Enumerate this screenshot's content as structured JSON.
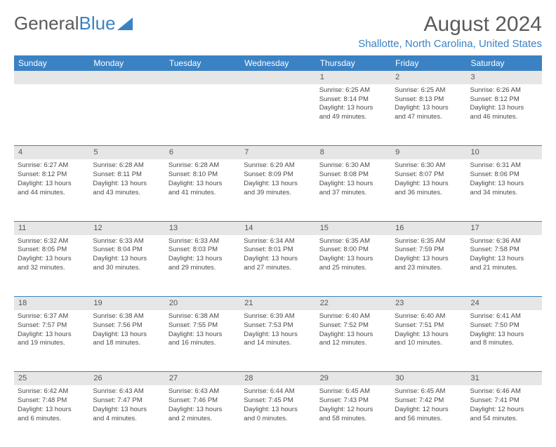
{
  "logo": {
    "text1": "General",
    "text2": "Blue"
  },
  "header": {
    "month_title": "August 2024",
    "location": "Shallotte, North Carolina, United States"
  },
  "colors": {
    "accent": "#3b82c4",
    "header_text": "#ffffff",
    "daynum_bg": "#e6e6e6",
    "body_text": "#4a4a4a",
    "title_text": "#5a5a5a"
  },
  "day_headers": [
    "Sunday",
    "Monday",
    "Tuesday",
    "Wednesday",
    "Thursday",
    "Friday",
    "Saturday"
  ],
  "weeks": [
    {
      "nums": [
        "",
        "",
        "",
        "",
        "1",
        "2",
        "3"
      ],
      "cells": [
        null,
        null,
        null,
        null,
        {
          "sunrise": "Sunrise: 6:25 AM",
          "sunset": "Sunset: 8:14 PM",
          "day1": "Daylight: 13 hours",
          "day2": "and 49 minutes."
        },
        {
          "sunrise": "Sunrise: 6:25 AM",
          "sunset": "Sunset: 8:13 PM",
          "day1": "Daylight: 13 hours",
          "day2": "and 47 minutes."
        },
        {
          "sunrise": "Sunrise: 6:26 AM",
          "sunset": "Sunset: 8:12 PM",
          "day1": "Daylight: 13 hours",
          "day2": "and 46 minutes."
        }
      ]
    },
    {
      "nums": [
        "4",
        "5",
        "6",
        "7",
        "8",
        "9",
        "10"
      ],
      "cells": [
        {
          "sunrise": "Sunrise: 6:27 AM",
          "sunset": "Sunset: 8:12 PM",
          "day1": "Daylight: 13 hours",
          "day2": "and 44 minutes."
        },
        {
          "sunrise": "Sunrise: 6:28 AM",
          "sunset": "Sunset: 8:11 PM",
          "day1": "Daylight: 13 hours",
          "day2": "and 43 minutes."
        },
        {
          "sunrise": "Sunrise: 6:28 AM",
          "sunset": "Sunset: 8:10 PM",
          "day1": "Daylight: 13 hours",
          "day2": "and 41 minutes."
        },
        {
          "sunrise": "Sunrise: 6:29 AM",
          "sunset": "Sunset: 8:09 PM",
          "day1": "Daylight: 13 hours",
          "day2": "and 39 minutes."
        },
        {
          "sunrise": "Sunrise: 6:30 AM",
          "sunset": "Sunset: 8:08 PM",
          "day1": "Daylight: 13 hours",
          "day2": "and 37 minutes."
        },
        {
          "sunrise": "Sunrise: 6:30 AM",
          "sunset": "Sunset: 8:07 PM",
          "day1": "Daylight: 13 hours",
          "day2": "and 36 minutes."
        },
        {
          "sunrise": "Sunrise: 6:31 AM",
          "sunset": "Sunset: 8:06 PM",
          "day1": "Daylight: 13 hours",
          "day2": "and 34 minutes."
        }
      ]
    },
    {
      "nums": [
        "11",
        "12",
        "13",
        "14",
        "15",
        "16",
        "17"
      ],
      "cells": [
        {
          "sunrise": "Sunrise: 6:32 AM",
          "sunset": "Sunset: 8:05 PM",
          "day1": "Daylight: 13 hours",
          "day2": "and 32 minutes."
        },
        {
          "sunrise": "Sunrise: 6:33 AM",
          "sunset": "Sunset: 8:04 PM",
          "day1": "Daylight: 13 hours",
          "day2": "and 30 minutes."
        },
        {
          "sunrise": "Sunrise: 6:33 AM",
          "sunset": "Sunset: 8:03 PM",
          "day1": "Daylight: 13 hours",
          "day2": "and 29 minutes."
        },
        {
          "sunrise": "Sunrise: 6:34 AM",
          "sunset": "Sunset: 8:01 PM",
          "day1": "Daylight: 13 hours",
          "day2": "and 27 minutes."
        },
        {
          "sunrise": "Sunrise: 6:35 AM",
          "sunset": "Sunset: 8:00 PM",
          "day1": "Daylight: 13 hours",
          "day2": "and 25 minutes."
        },
        {
          "sunrise": "Sunrise: 6:35 AM",
          "sunset": "Sunset: 7:59 PM",
          "day1": "Daylight: 13 hours",
          "day2": "and 23 minutes."
        },
        {
          "sunrise": "Sunrise: 6:36 AM",
          "sunset": "Sunset: 7:58 PM",
          "day1": "Daylight: 13 hours",
          "day2": "and 21 minutes."
        }
      ]
    },
    {
      "nums": [
        "18",
        "19",
        "20",
        "21",
        "22",
        "23",
        "24"
      ],
      "cells": [
        {
          "sunrise": "Sunrise: 6:37 AM",
          "sunset": "Sunset: 7:57 PM",
          "day1": "Daylight: 13 hours",
          "day2": "and 19 minutes."
        },
        {
          "sunrise": "Sunrise: 6:38 AM",
          "sunset": "Sunset: 7:56 PM",
          "day1": "Daylight: 13 hours",
          "day2": "and 18 minutes."
        },
        {
          "sunrise": "Sunrise: 6:38 AM",
          "sunset": "Sunset: 7:55 PM",
          "day1": "Daylight: 13 hours",
          "day2": "and 16 minutes."
        },
        {
          "sunrise": "Sunrise: 6:39 AM",
          "sunset": "Sunset: 7:53 PM",
          "day1": "Daylight: 13 hours",
          "day2": "and 14 minutes."
        },
        {
          "sunrise": "Sunrise: 6:40 AM",
          "sunset": "Sunset: 7:52 PM",
          "day1": "Daylight: 13 hours",
          "day2": "and 12 minutes."
        },
        {
          "sunrise": "Sunrise: 6:40 AM",
          "sunset": "Sunset: 7:51 PM",
          "day1": "Daylight: 13 hours",
          "day2": "and 10 minutes."
        },
        {
          "sunrise": "Sunrise: 6:41 AM",
          "sunset": "Sunset: 7:50 PM",
          "day1": "Daylight: 13 hours",
          "day2": "and 8 minutes."
        }
      ]
    },
    {
      "nums": [
        "25",
        "26",
        "27",
        "28",
        "29",
        "30",
        "31"
      ],
      "cells": [
        {
          "sunrise": "Sunrise: 6:42 AM",
          "sunset": "Sunset: 7:48 PM",
          "day1": "Daylight: 13 hours",
          "day2": "and 6 minutes."
        },
        {
          "sunrise": "Sunrise: 6:43 AM",
          "sunset": "Sunset: 7:47 PM",
          "day1": "Daylight: 13 hours",
          "day2": "and 4 minutes."
        },
        {
          "sunrise": "Sunrise: 6:43 AM",
          "sunset": "Sunset: 7:46 PM",
          "day1": "Daylight: 13 hours",
          "day2": "and 2 minutes."
        },
        {
          "sunrise": "Sunrise: 6:44 AM",
          "sunset": "Sunset: 7:45 PM",
          "day1": "Daylight: 13 hours",
          "day2": "and 0 minutes."
        },
        {
          "sunrise": "Sunrise: 6:45 AM",
          "sunset": "Sunset: 7:43 PM",
          "day1": "Daylight: 12 hours",
          "day2": "and 58 minutes."
        },
        {
          "sunrise": "Sunrise: 6:45 AM",
          "sunset": "Sunset: 7:42 PM",
          "day1": "Daylight: 12 hours",
          "day2": "and 56 minutes."
        },
        {
          "sunrise": "Sunrise: 6:46 AM",
          "sunset": "Sunset: 7:41 PM",
          "day1": "Daylight: 12 hours",
          "day2": "and 54 minutes."
        }
      ]
    }
  ]
}
